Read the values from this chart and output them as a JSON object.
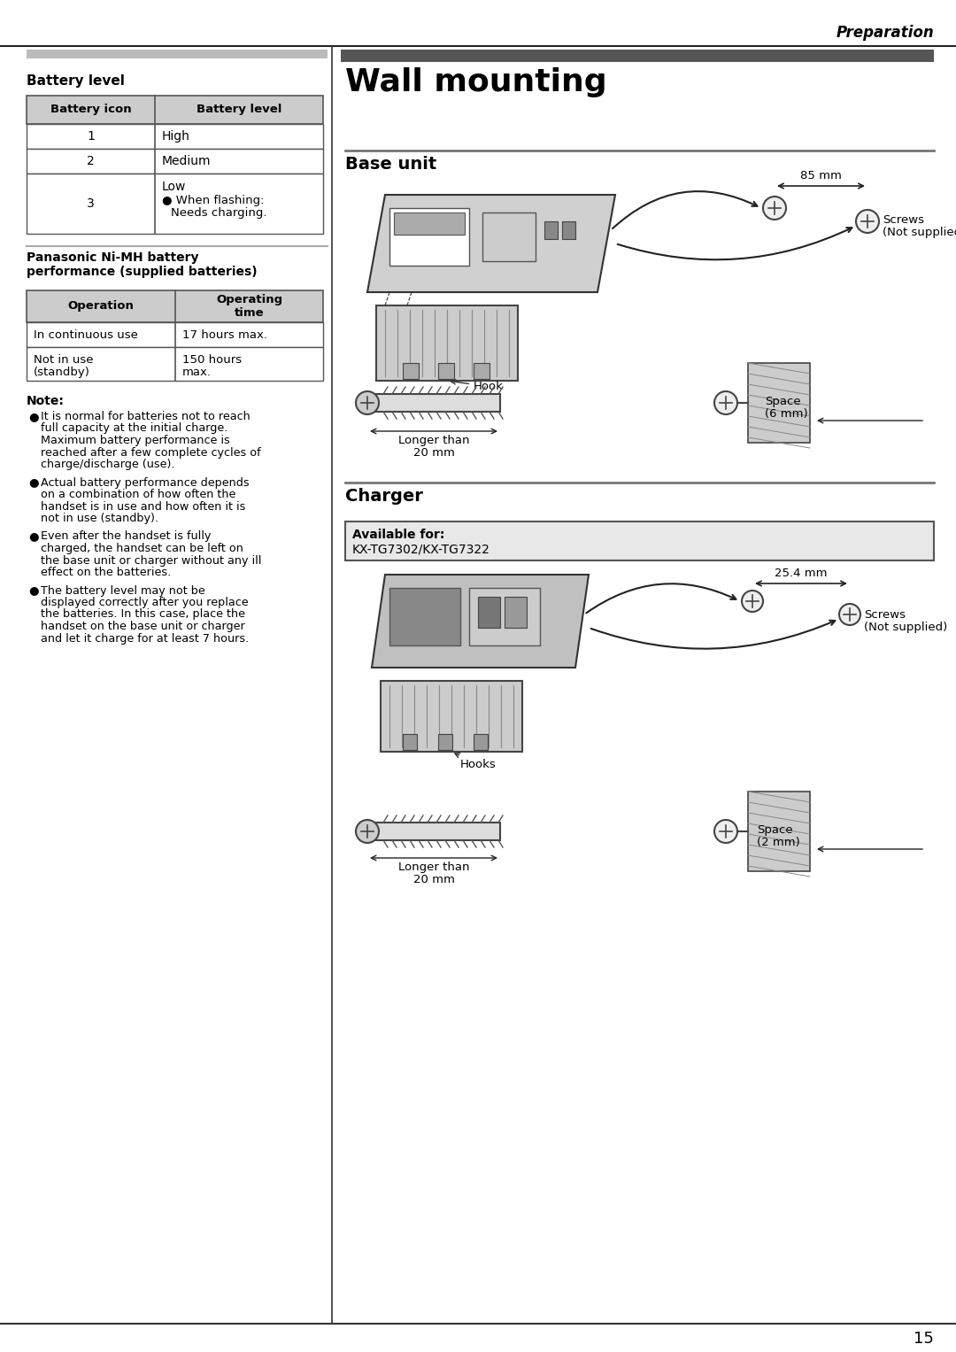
{
  "page_number": "15",
  "header_italic": "Preparation",
  "bg_color": "#ffffff",
  "left_panel": {
    "battery_level_title": "Battery level",
    "battery_table_headers": [
      "Battery icon",
      "Battery level"
    ],
    "battery_table_rows": [
      [
        "1",
        "High"
      ],
      [
        "2",
        "Medium"
      ],
      [
        "3",
        "Low"
      ]
    ],
    "battery_row3_extra": [
      "● When flashing:",
      "    Needs charging."
    ],
    "nimh_title_line1": "Panasonic Ni-MH battery",
    "nimh_title_line2": "performance (supplied batteries)",
    "op_table_headers": [
      "Operation",
      "Operating\ntime"
    ],
    "op_table_rows": [
      [
        "In continuous use",
        "17 hours max."
      ],
      [
        "Not in use\n(standby)",
        "150 hours\nmax."
      ]
    ],
    "note_title": "Note:",
    "note_bullets": [
      "It is normal for batteries not to reach\nfull capacity at the initial charge.\nMaximum battery performance is\nreached after a few complete cycles of\ncharge/discharge (use).",
      "Actual battery performance depends\non a combination of how often the\nhandset is in use and how often it is\nnot in use (standby).",
      "Even after the handset is fully\ncharged, the handset can be left on\nthe base unit or charger without any ill\neffect on the batteries.",
      "The battery level may not be\ndisplayed correctly after you replace\nthe batteries. In this case, place the\nhandset on the base unit or charger\nand let it charge for at least 7 hours."
    ]
  },
  "right_panel": {
    "section_title": "Wall mounting",
    "subsection1_title": "Base unit",
    "base_unit_labels": [
      "85 mm",
      "Screws\n(Not supplied)",
      "Hook",
      "Longer than\n20 mm",
      "Space\n(6 mm)"
    ],
    "subsection2_title": "Charger",
    "charger_box_line1": "Available for:",
    "charger_box_line2": "KX-TG7302/KX-TG7322",
    "charger_labels": [
      "25.4 mm",
      "Screws\n(Not supplied)",
      "Hooks",
      "Longer than\n20 mm",
      "Space\n(2 mm)"
    ]
  }
}
